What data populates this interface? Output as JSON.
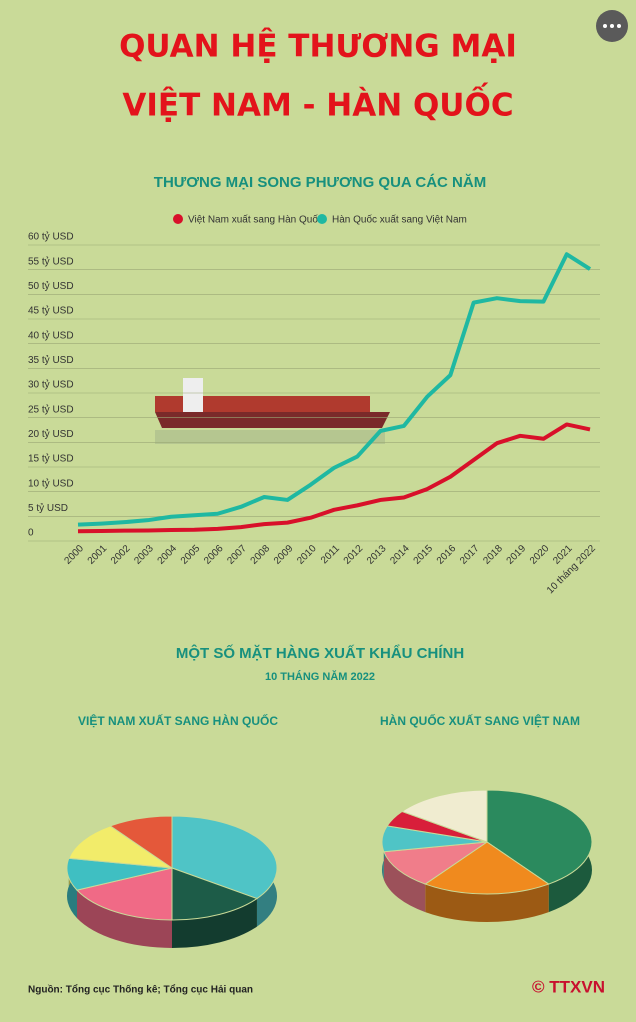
{
  "header": {
    "title_line1": "QUAN HỆ THƯƠNG MẠI",
    "title_line2": "VIỆT NAM - HÀN QUỐC"
  },
  "section2": {
    "title": "MỘT SỐ MẶT HÀNG XUẤT KHẨU CHÍNH",
    "subtitle": "10 THÁNG NĂM 2022"
  },
  "footer": {
    "source": "Nguồn: Tổng cục Thống kê; Tổng cục Hải quan",
    "logo": "© TTXVN"
  },
  "chart_data": [
    {
      "type": "line",
      "title": "THƯƠNG MẠI SONG PHƯƠNG QUA CÁC NĂM",
      "categories": [
        "2000",
        "2001",
        "2002",
        "2003",
        "2004",
        "2005",
        "2006",
        "2007",
        "2008",
        "2009",
        "2010",
        "2011",
        "2012",
        "2013",
        "2014",
        "2015",
        "2016",
        "2017",
        "2018",
        "2019",
        "2020",
        "2021",
        "10 tháng 2022"
      ],
      "series": [
        {
          "name": "Việt Nam xuất sang Hàn Quốc",
          "color": "#d8102a",
          "values": [
            0.35,
            0.4,
            0.47,
            0.5,
            0.6,
            0.66,
            0.84,
            1.2,
            1.8,
            2.1,
            3.1,
            4.7,
            5.6,
            6.7,
            7.2,
            8.9,
            11.4,
            14.8,
            18.2,
            19.7,
            19.1,
            22,
            21
          ]
        },
        {
          "name": "Hàn Quốc xuất sang Việt Nam",
          "color": "#1fb8a2",
          "values": [
            1.7,
            1.9,
            2.2,
            2.6,
            3.3,
            3.6,
            3.9,
            5.3,
            7.3,
            6.7,
            9.8,
            13.2,
            15.5,
            20.7,
            21.7,
            27.6,
            32,
            46.7,
            47.6,
            47,
            46.9,
            56.5,
            53.5
          ]
        }
      ],
      "ylim": [
        0,
        60
      ],
      "yticks": [
        0,
        {
          "value": 5,
          "label": "5 tỷ USD"
        },
        {
          "value": 10,
          "label": "10 tỷ USD"
        },
        {
          "value": 15,
          "label": "15 tỷ USD"
        },
        {
          "value": 20,
          "label": "20 tỷ USD"
        },
        {
          "value": 25,
          "label": "25 tỷ USD"
        },
        {
          "value": 30,
          "label": "30 tỷ USD"
        },
        {
          "value": 35,
          "label": "35 tỷ USD"
        },
        {
          "value": 40,
          "label": "40 tỷ USD"
        },
        {
          "value": 45,
          "label": "45 tỷ USD"
        },
        {
          "value": 50,
          "label": "50 tỷ USD"
        },
        {
          "value": 55,
          "label": "55 tỷ USD"
        },
        {
          "value": 60,
          "label": "60 tỷ USD"
        }
      ],
      "grid": true
    },
    {
      "type": "pie",
      "title": "VIỆT NAM XUẤT SANG HÀN QUỐC",
      "values": [
        35,
        15,
        18,
        10,
        12,
        10
      ],
      "colors": [
        "#4fc4c6",
        "#1d5c48",
        "#f06a86",
        "#3fbfc2",
        "#f2ec6a",
        "#e4583a"
      ]
    },
    {
      "type": "pie",
      "title": "HÀN QUỐC XUẤT SANG VIỆT NAM",
      "values": [
        40,
        20,
        12,
        8,
        5,
        15
      ],
      "colors": [
        "#2b8a5e",
        "#f08a1e",
        "#f07d8a",
        "#4fc4c6",
        "#d81e3a",
        "#f0ecd0"
      ]
    }
  ]
}
